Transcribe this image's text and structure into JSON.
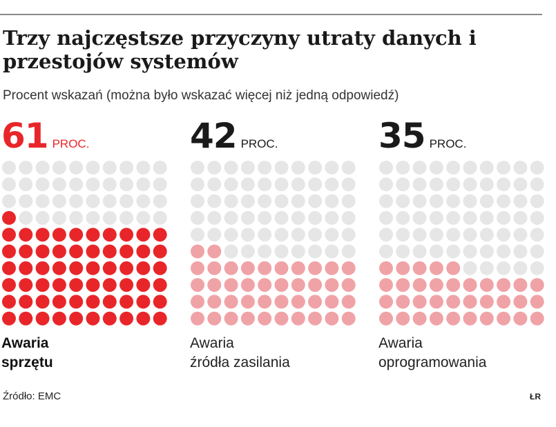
{
  "title": "Trzy najczęstsze przyczyny utraty danych i przestojów systemów",
  "subtitle": "Procent wskazań (można było wskazać więcej niż jedną odpowiedź)",
  "source": "Źródło: EMC",
  "initials": "ŁR",
  "colors": {
    "accent": "#e8262a",
    "filled": "#f0a3a6",
    "empty": "#e6e6e6",
    "text": "#1a1a1a"
  },
  "chart_data": {
    "type": "waffle",
    "unit_label": "PROC.",
    "grid": {
      "rows": 10,
      "cols": 10
    },
    "categories": [
      "Awaria sprzętu",
      "Awaria źródła zasilania",
      "Awaria oprogramowania"
    ],
    "values": [
      61,
      42,
      35
    ],
    "value_labels": [
      "61",
      "42",
      "35"
    ],
    "label_lines": [
      [
        "Awaria",
        "sprzętu"
      ],
      [
        "Awaria",
        "źródła zasilania"
      ],
      [
        "Awaria",
        "oprogramowania"
      ]
    ],
    "highlighted": 0
  }
}
